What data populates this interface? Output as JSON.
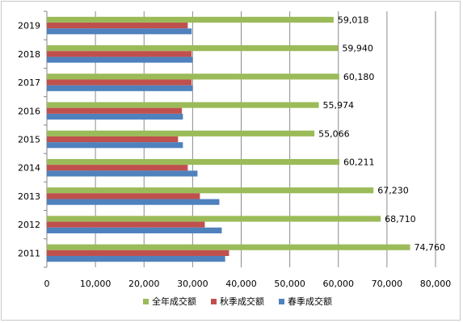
{
  "chart_data": {
    "type": "bar",
    "orientation": "horizontal",
    "categories": [
      "2019",
      "2018",
      "2017",
      "2016",
      "2015",
      "2014",
      "2013",
      "2012",
      "2011"
    ],
    "series": [
      {
        "name": "全年成交额",
        "color": "#9bbb59",
        "values": [
          59018,
          59940,
          60180,
          55974,
          55066,
          60211,
          67230,
          68710,
          74760
        ],
        "labels": [
          "59,018",
          "59,940",
          "60,180",
          "55,974",
          "55,066",
          "60,211",
          "67,230",
          "68,710",
          "74,760"
        ]
      },
      {
        "name": "秋季成交额",
        "color": "#c0504d",
        "values": [
          29000,
          29800,
          29800,
          27800,
          27000,
          29000,
          31500,
          32500,
          37500
        ]
      },
      {
        "name": "春季成交额",
        "color": "#4f81bd",
        "values": [
          29800,
          30000,
          30000,
          28000,
          28000,
          31000,
          35500,
          36000,
          36700
        ]
      }
    ],
    "xlim": [
      0,
      80000
    ],
    "xticks": [
      "0",
      "10,000",
      "20,000",
      "30,000",
      "40,000",
      "50,000",
      "60,000",
      "70,000",
      "80,000"
    ],
    "grid": true,
    "legend_position": "bottom"
  }
}
